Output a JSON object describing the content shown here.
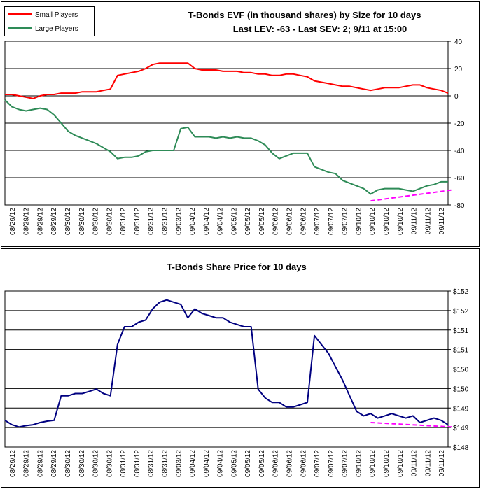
{
  "chart_data": [
    {
      "type": "line",
      "title": "T-Bonds EVF (in thousand shares) by Size for 10 days",
      "subtitle": "Last LEV: -63 - Last SEV: 2; 9/11 at 15:00",
      "xlabel": "",
      "ylabel": "",
      "ylim": [
        -80,
        40
      ],
      "yticks": [
        40,
        20,
        0,
        -20,
        -40,
        -60,
        -80
      ],
      "grid": true,
      "legend_position": "top-left",
      "x_tick_labels": [
        "08/29/12",
        "08/29/12",
        "08/29/12",
        "08/29/12",
        "08/30/12",
        "08/30/12",
        "08/30/12",
        "08/30/12",
        "08/31/12",
        "08/31/12",
        "08/31/12",
        "08/31/12",
        "09/03/12",
        "09/04/12",
        "09/04/12",
        "09/04/12",
        "09/05/12",
        "09/05/12",
        "09/05/12",
        "09/06/12",
        "09/06/12",
        "09/06/12",
        "09/07/12",
        "09/07/12",
        "09/07/12",
        "09/10/12",
        "09/10/12",
        "09/10/12",
        "09/10/12",
        "09/11/12",
        "09/11/12",
        "09/11/12"
      ],
      "n_points": 64,
      "series": [
        {
          "name": "Small Players",
          "color": "#ff0000",
          "values": [
            1,
            1,
            0,
            -1,
            -2,
            0,
            1,
            1,
            2,
            2,
            2,
            3,
            3,
            3,
            4,
            5,
            15,
            16,
            17,
            18,
            20,
            23,
            24,
            24,
            24,
            24,
            24,
            20,
            19,
            19,
            19,
            18,
            18,
            18,
            17,
            17,
            16,
            16,
            15,
            15,
            16,
            16,
            15,
            14,
            11,
            10,
            9,
            8,
            7,
            7,
            6,
            5,
            4,
            5,
            6,
            6,
            6,
            7,
            8,
            8,
            6,
            5,
            4,
            2
          ]
        },
        {
          "name": "Large Players",
          "color": "#2e8b57",
          "values": [
            -3,
            -8,
            -10,
            -11,
            -10,
            -9,
            -10,
            -14,
            -20,
            -26,
            -29,
            -31,
            -33,
            -35,
            -38,
            -41,
            -46,
            -45,
            -45,
            -44,
            -41,
            -40,
            -40,
            -40,
            -40,
            -24,
            -23,
            -30,
            -30,
            -30,
            -31,
            -30,
            -31,
            -30,
            -31,
            -31,
            -33,
            -36,
            -42,
            -46,
            -44,
            -42,
            -42,
            -42,
            -52,
            -54,
            -56,
            -57,
            -62,
            -64,
            -66,
            -68,
            -72,
            -69,
            -68,
            -68,
            -68,
            -69,
            -70,
            -68,
            -66,
            -65,
            -63,
            -63
          ]
        }
      ],
      "annotations": [
        {
          "type": "trendline",
          "color": "#ff00ff",
          "style": "dashed",
          "x_start_index": 52,
          "x_end_index": 63,
          "y_start": -77,
          "y_end": -69
        }
      ]
    },
    {
      "type": "line",
      "title": "T-Bonds Share Price for 10 days",
      "xlabel": "",
      "ylabel": "",
      "ylim": [
        148.3,
        151.8
      ],
      "yticks_display": [
        "$152",
        "$152",
        "$151",
        "$151",
        "$150",
        "$150",
        "$149",
        "$149",
        "$148"
      ],
      "grid": true,
      "x_tick_labels": [
        "08/29/12",
        "08/29/12",
        "08/29/12",
        "08/29/12",
        "08/30/12",
        "08/30/12",
        "08/30/12",
        "08/30/12",
        "08/31/12",
        "08/31/12",
        "08/31/12",
        "08/31/12",
        "09/03/12",
        "09/04/12",
        "09/04/12",
        "09/04/12",
        "09/05/12",
        "09/05/12",
        "09/05/12",
        "09/06/12",
        "09/06/12",
        "09/06/12",
        "09/07/12",
        "09/07/12",
        "09/07/12",
        "09/10/12",
        "09/10/12",
        "09/10/12",
        "09/10/12",
        "09/11/12",
        "09/11/12",
        "09/11/12"
      ],
      "n_points": 64,
      "series": [
        {
          "name": "",
          "color": "#000080",
          "values": [
            148.9,
            148.8,
            148.75,
            148.78,
            148.8,
            148.85,
            148.88,
            148.9,
            149.45,
            149.45,
            149.5,
            149.5,
            149.55,
            149.6,
            149.5,
            149.45,
            150.6,
            151.0,
            151.0,
            151.1,
            151.15,
            151.4,
            151.55,
            151.6,
            151.55,
            151.5,
            151.2,
            151.4,
            151.3,
            151.25,
            151.2,
            151.2,
            151.1,
            151.05,
            151.0,
            151.0,
            149.6,
            149.4,
            149.3,
            149.3,
            149.2,
            149.2,
            149.25,
            149.3,
            150.8,
            150.6,
            150.4,
            150.1,
            149.8,
            149.45,
            149.1,
            149.0,
            149.05,
            148.95,
            149.0,
            149.05,
            149.0,
            148.95,
            149.0,
            148.85,
            148.9,
            148.95,
            148.9,
            148.8
          ]
        }
      ],
      "annotations": [
        {
          "type": "trendline",
          "color": "#ff00ff",
          "style": "dashed",
          "x_start_index": 52,
          "x_end_index": 63,
          "y_start": 148.85,
          "y_end": 148.75
        }
      ]
    }
  ]
}
